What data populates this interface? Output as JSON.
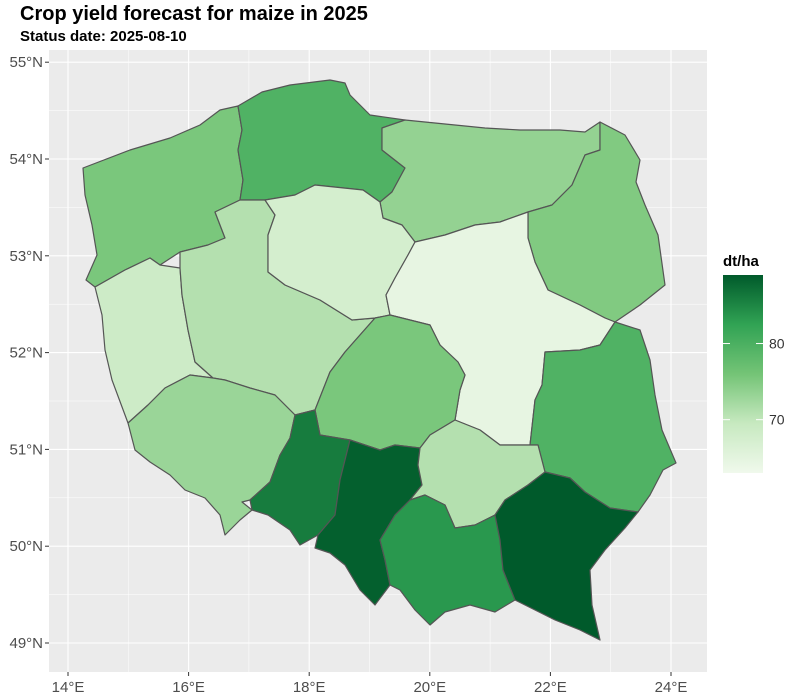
{
  "title": "Crop yield forecast for maize in 2025",
  "subtitle": "Status date: 2025-08-10",
  "legend": {
    "title": "dt/ha",
    "min": 63,
    "max": 89,
    "ticks": [
      {
        "value": 70,
        "label": "70"
      },
      {
        "value": 80,
        "label": "80"
      }
    ],
    "color_low": "#f0f9ec",
    "color_high": "#005a2b"
  },
  "axes": {
    "x_ticks": [
      {
        "value": 14,
        "label": "14°E"
      },
      {
        "value": 16,
        "label": "16°E"
      },
      {
        "value": 18,
        "label": "18°E"
      },
      {
        "value": 20,
        "label": "20°E"
      },
      {
        "value": 22,
        "label": "22°E"
      },
      {
        "value": 24,
        "label": "24°E"
      }
    ],
    "y_ticks": [
      {
        "value": 49,
        "label": "49°N"
      },
      {
        "value": 50,
        "label": "50°N"
      },
      {
        "value": 51,
        "label": "51°N"
      },
      {
        "value": 52,
        "label": "52°N"
      },
      {
        "value": 53,
        "label": "53°N"
      },
      {
        "value": 54,
        "label": "54°N"
      },
      {
        "value": 55,
        "label": "55°N"
      }
    ]
  },
  "chart_data": {
    "type": "choropleth",
    "unit": "dt/ha",
    "regions": [
      {
        "id": "zachodniopomorskie",
        "value": 75.5
      },
      {
        "id": "pomorskie",
        "value": 79.5
      },
      {
        "id": "warminsko-mazurskie",
        "value": 73.5
      },
      {
        "id": "podlaskie",
        "value": 75.0
      },
      {
        "id": "lubuskie",
        "value": 68.5
      },
      {
        "id": "wielkopolskie",
        "value": 71.0
      },
      {
        "id": "kujawsko-pomorskie",
        "value": 67.5
      },
      {
        "id": "mazowieckie",
        "value": 64.5
      },
      {
        "id": "lodzkie",
        "value": 75.5
      },
      {
        "id": "lubelskie",
        "value": 79.5
      },
      {
        "id": "dolnoslaskie",
        "value": 73.0
      },
      {
        "id": "opolskie",
        "value": 86.0
      },
      {
        "id": "slaskie",
        "value": 88.5
      },
      {
        "id": "swietokrzyskie",
        "value": 71.0
      },
      {
        "id": "malopolskie",
        "value": 83.5
      },
      {
        "id": "podkarpackie",
        "value": 89.0
      }
    ]
  }
}
